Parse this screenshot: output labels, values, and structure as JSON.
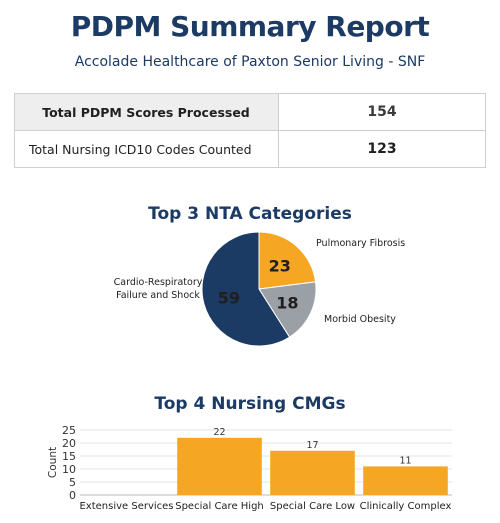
{
  "report": {
    "title": "PDPM Summary Report",
    "facility": "Accolade Healthcare of Paxton Senior Living - SNF"
  },
  "summary": {
    "rows": [
      {
        "label": "Total PDPM Scores Processed",
        "value": "154"
      },
      {
        "label": "Total Nursing ICD10 Codes Counted",
        "value": "123"
      }
    ]
  },
  "nta_section": {
    "title": "Top 3 NTA Categories"
  },
  "cmg_section": {
    "title": "Top 4 Nursing CMGs"
  },
  "chart_data": [
    {
      "type": "pie",
      "labels": [
        "Pulmonary Fibrosis",
        "Morbid Obesity",
        "Cardio-Respiratory Failure and Shock"
      ],
      "label_lines": [
        [
          "Pulmonary Fibrosis"
        ],
        [
          "Morbid Obesity"
        ],
        [
          "Cardio-Respiratory",
          "Failure and Shock"
        ]
      ],
      "values": [
        23,
        18,
        59
      ],
      "colors": [
        "#f5a623",
        "#9aa0a6",
        "#1b3a64"
      ],
      "value_colors": [
        "#1f1f1f",
        "#1f1f1f",
        "#1f1f1f"
      ]
    },
    {
      "type": "bar",
      "categories": [
        "Extensive Services",
        "Special Care High",
        "Special Care Low",
        "Clinically Complex"
      ],
      "values": [
        0,
        22,
        17,
        11
      ],
      "data_labels": [
        "",
        "22",
        "17",
        "11"
      ],
      "ylabel": "Count",
      "ylim": [
        0,
        25
      ],
      "yticks": [
        0,
        5,
        10,
        15,
        20,
        25
      ],
      "grid": true,
      "color": "#f5a623"
    }
  ]
}
